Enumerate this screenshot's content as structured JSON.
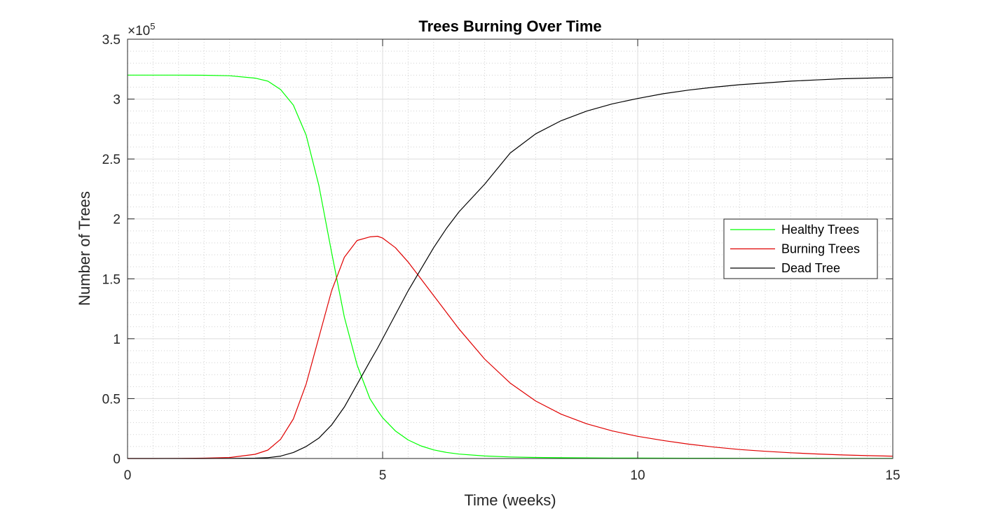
{
  "chart_data": {
    "type": "line",
    "title": "Trees Burning Over Time",
    "xlabel": "Time (weeks)",
    "ylabel": "Number of Trees",
    "xlim": [
      0,
      15
    ],
    "ylim": [
      0,
      350000
    ],
    "x_ticks": [
      0,
      5,
      10,
      15
    ],
    "x_tick_labels": [
      "0",
      "5",
      "10",
      "15"
    ],
    "y_ticks": [
      0,
      50000,
      100000,
      150000,
      200000,
      250000,
      300000,
      350000
    ],
    "y_tick_labels": [
      "0",
      "0.5",
      "1",
      "1.5",
      "2",
      "2.5",
      "3",
      "3.5"
    ],
    "y_exponent_base": "×10",
    "y_exponent_power": "5",
    "grid": true,
    "minor_grid": true,
    "legend_position": "right",
    "x": [
      0,
      0.5,
      1,
      1.5,
      2,
      2.5,
      2.75,
      3,
      3.25,
      3.5,
      3.75,
      4,
      4.25,
      4.5,
      4.75,
      4.9,
      5,
      5.25,
      5.5,
      5.75,
      6,
      6.25,
      6.5,
      7,
      7.5,
      8,
      8.5,
      9,
      9.5,
      10,
      10.5,
      11,
      11.5,
      12,
      12.5,
      13,
      13.5,
      14,
      14.5,
      15
    ],
    "series": [
      {
        "name": "Healthy Trees",
        "color": "#00ff00",
        "values": [
          320000,
          320000,
          320000,
          319900,
          319500,
          317500,
          315000,
          308000,
          295000,
          270000,
          228000,
          172000,
          118000,
          78000,
          50000,
          40000,
          34000,
          23000,
          15500,
          10500,
          7200,
          5100,
          3700,
          2100,
          1300,
          900,
          650,
          500,
          400,
          330,
          280,
          240,
          210,
          190,
          170,
          160,
          150,
          140,
          130,
          120
        ]
      },
      {
        "name": "Burning Trees",
        "color": "#e00000",
        "values": [
          0,
          0,
          100,
          300,
          800,
          3500,
          7000,
          16000,
          33000,
          62000,
          101000,
          140000,
          168000,
          182000,
          185000,
          185500,
          184000,
          176000,
          164000,
          150000,
          136000,
          122000,
          108000,
          83000,
          63000,
          48000,
          37000,
          29000,
          23000,
          18500,
          15000,
          12000,
          9500,
          7500,
          6000,
          4800,
          3800,
          3000,
          2400,
          1900
        ]
      },
      {
        "name": "Dead Tree",
        "color": "#000000",
        "values": [
          0,
          0,
          0,
          0,
          100,
          300,
          700,
          2000,
          5000,
          10000,
          17000,
          28000,
          43000,
          62000,
          81000,
          92000,
          100000,
          120000,
          140000,
          158000,
          176000,
          192000,
          206000,
          229000,
          255000,
          271000,
          282000,
          290000,
          296000,
          300500,
          304500,
          307500,
          310000,
          312000,
          313500,
          315000,
          316000,
          317000,
          317500,
          318000
        ]
      }
    ]
  }
}
